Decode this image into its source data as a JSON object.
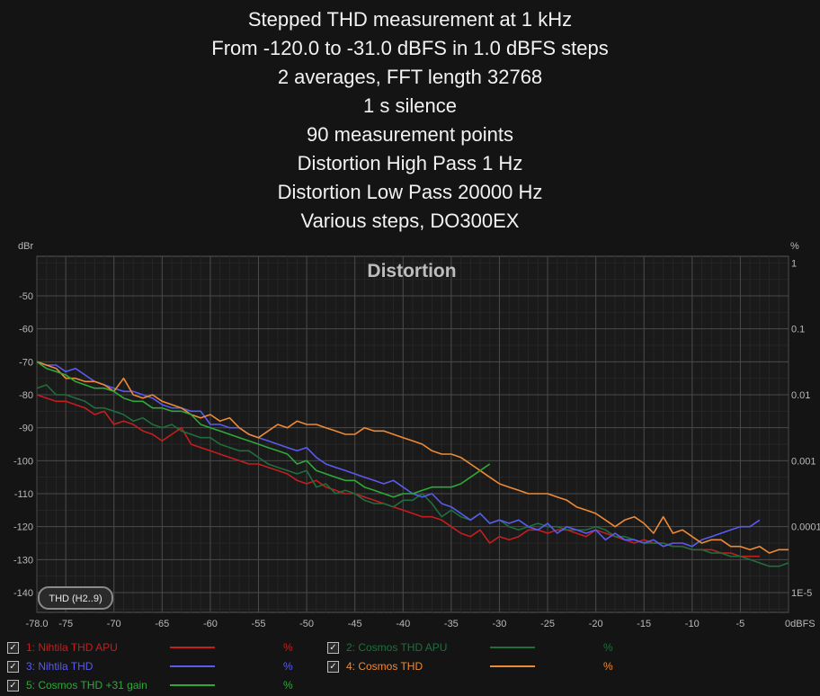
{
  "title_lines": [
    "Stepped THD measurement at 1 kHz",
    "From -120.0 to -31.0 dBFS in 1.0 dBFS steps",
    "2 averages, FFT length 32768",
    "1 s silence",
    "90 measurement points",
    "Distortion High Pass 1 Hz",
    "Distortion Low Pass 20000 Hz",
    "Various steps, DO300EX"
  ],
  "chart_data": {
    "type": "line",
    "title": "Distortion",
    "y_left_unit": "dBr",
    "y_right_unit": "%",
    "xlim": [
      -78.0,
      0
    ],
    "ylim": [
      -146,
      -38
    ],
    "x_ticks": [
      -78.0,
      -75,
      -70,
      -65,
      -60,
      -55,
      -50,
      -45,
      -40,
      -35,
      -30,
      -25,
      -20,
      -15,
      -10,
      -5,
      0
    ],
    "x_tick_labels": [
      "-78.0",
      "-75",
      "-70",
      "-65",
      "-60",
      "-55",
      "-50",
      "-45",
      "-40",
      "-35",
      "-30",
      "-25",
      "-20",
      "-15",
      "-10",
      "-5",
      "0dBFS"
    ],
    "y_ticks": [
      -50,
      -60,
      -70,
      -80,
      -90,
      -100,
      -110,
      -120,
      -130,
      -140
    ],
    "y_tick_labels": [
      "-50",
      "-60",
      "-70",
      "-80",
      "-90",
      "-100",
      "-110",
      "-120",
      "-130",
      "-140"
    ],
    "y_right_ticks": [
      -40,
      -60,
      -80,
      -100,
      -120,
      -140
    ],
    "y_right_labels": [
      "1",
      "0.1",
      "0.01",
      "0.001",
      "0.0001",
      "1E-5"
    ],
    "grid": true,
    "series": [
      {
        "name": "1: Nihtila THD  APU",
        "color": "#c41e1e",
        "x": [
          -78,
          -77,
          -76,
          -75,
          -74,
          -73,
          -72,
          -71,
          -70,
          -69,
          -68,
          -67,
          -66,
          -65,
          -64,
          -63,
          -62,
          -61,
          -60,
          -59,
          -58,
          -57,
          -56,
          -55,
          -54,
          -53,
          -52,
          -51,
          -50,
          -49,
          -48,
          -47,
          -46,
          -45,
          -44,
          -43,
          -42,
          -41,
          -40,
          -39,
          -38,
          -37,
          -36,
          -35,
          -34,
          -33,
          -32,
          -31,
          -30,
          -29,
          -28,
          -27,
          -26,
          -25,
          -24,
          -23,
          -22,
          -21,
          -20,
          -19,
          -18,
          -17,
          -16,
          -15,
          -14,
          -13,
          -12,
          -11,
          -10,
          -9,
          -8,
          -7,
          -6,
          -5,
          -4,
          -3
        ],
        "y": [
          -80,
          -81,
          -82,
          -82,
          -83,
          -84,
          -86,
          -85,
          -89,
          -88,
          -89,
          -91,
          -92,
          -94,
          -92,
          -90,
          -95,
          -96,
          -97,
          -98,
          -99,
          -100,
          -101,
          -101,
          -102,
          -103,
          -104,
          -106,
          -107,
          -106,
          -108,
          -109,
          -110,
          -110,
          -111,
          -112,
          -113,
          -114,
          -115,
          -116,
          -117,
          -117,
          -118,
          -120,
          -122,
          -123,
          -121,
          -125,
          -123,
          -124,
          -123,
          -121,
          -121,
          -122,
          -121,
          -121,
          -122,
          -123,
          -121,
          -122,
          -123,
          -124,
          -125,
          -124,
          -125,
          -125,
          -126,
          -126,
          -127,
          -127,
          -127,
          -128,
          -128,
          -129,
          -129,
          -129
        ]
      },
      {
        "name": "2: Cosmos THD APU",
        "color": "#1f6e3c",
        "x": [
          -78,
          -77,
          -76,
          -75,
          -74,
          -73,
          -72,
          -71,
          -70,
          -69,
          -68,
          -67,
          -66,
          -65,
          -64,
          -63,
          -62,
          -61,
          -60,
          -59,
          -58,
          -57,
          -56,
          -55,
          -54,
          -53,
          -52,
          -51,
          -50,
          -49,
          -48,
          -47,
          -46,
          -45,
          -44,
          -43,
          -42,
          -41,
          -40,
          -39,
          -38,
          -37,
          -36,
          -35,
          -34,
          -33,
          -32,
          -31,
          -30,
          -29,
          -28,
          -27,
          -26,
          -25,
          -24,
          -23,
          -22,
          -21,
          -20,
          -19,
          -18,
          -17,
          -16,
          -15,
          -14,
          -13,
          -12,
          -11,
          -10,
          -9,
          -8,
          -7,
          -6,
          -5,
          -4,
          -3,
          -2,
          -1,
          0
        ],
        "y": [
          -78,
          -77,
          -80,
          -80,
          -81,
          -82,
          -84,
          -84,
          -85,
          -86,
          -88,
          -87,
          -89,
          -90,
          -89,
          -91,
          -92,
          -93,
          -93,
          -95,
          -96,
          -97,
          -97,
          -99,
          -101,
          -102,
          -103,
          -104,
          -103,
          -108,
          -107,
          -110,
          -109,
          -110,
          -112,
          -113,
          -113,
          -114,
          -112,
          -112,
          -110,
          -113,
          -117,
          -115,
          -117,
          -118,
          -116,
          -119,
          -118,
          -120,
          -121,
          -120,
          -119,
          -120,
          -120,
          -121,
          -121,
          -121,
          -120,
          -121,
          -123,
          -123,
          -124,
          -125,
          -125,
          -125,
          -126,
          -126,
          -127,
          -127,
          -128,
          -128,
          -129,
          -129,
          -130,
          -131,
          -132,
          -132,
          -131
        ]
      },
      {
        "name": "3: Nihtila THD",
        "color": "#5a5af0",
        "x": [
          -78,
          -77,
          -76,
          -75,
          -74,
          -73,
          -72,
          -71,
          -70,
          -69,
          -68,
          -67,
          -66,
          -65,
          -64,
          -63,
          -62,
          -61,
          -60,
          -59,
          -58,
          -57,
          -56,
          -55,
          -54,
          -53,
          -52,
          -51,
          -50,
          -49,
          -48,
          -47,
          -46,
          -45,
          -44,
          -43,
          -42,
          -41,
          -40,
          -39,
          -38,
          -37,
          -36,
          -35,
          -34,
          -33,
          -32,
          -31,
          -30,
          -29,
          -28,
          -27,
          -26,
          -25,
          -24,
          -23,
          -22,
          -21,
          -20,
          -19,
          -18,
          -17,
          -16,
          -15,
          -14,
          -13,
          -12,
          -11,
          -10,
          -9,
          -8,
          -7,
          -6,
          -5,
          -4,
          -3
        ],
        "y": [
          -70,
          -71,
          -71,
          -73,
          -72,
          -74,
          -76,
          -77,
          -78,
          -79,
          -79,
          -80,
          -81,
          -83,
          -84,
          -84,
          -85,
          -85,
          -89,
          -89,
          -90,
          -90,
          -92,
          -93,
          -94,
          -95,
          -96,
          -97,
          -96,
          -99,
          -101,
          -102,
          -103,
          -104,
          -105,
          -106,
          -107,
          -106,
          -108,
          -110,
          -111,
          -110,
          -113,
          -114,
          -116,
          -118,
          -116,
          -119,
          -118,
          -119,
          -118,
          -120,
          -121,
          -119,
          -122,
          -120,
          -121,
          -122,
          -121,
          -124,
          -122,
          -124,
          -124,
          -125,
          -124,
          -126,
          -125,
          -125,
          -126,
          -124,
          -123,
          -122,
          -121,
          -120,
          -120,
          -118
        ]
      },
      {
        "name": "4: Cosmos THD",
        "color": "#ee8a35",
        "x": [
          -78,
          -77,
          -76,
          -75,
          -74,
          -73,
          -72,
          -71,
          -70,
          -69,
          -68,
          -67,
          -66,
          -65,
          -64,
          -63,
          -62,
          -61,
          -60,
          -59,
          -58,
          -57,
          -56,
          -55,
          -54,
          -53,
          -52,
          -51,
          -50,
          -49,
          -48,
          -47,
          -46,
          -45,
          -44,
          -43,
          -42,
          -41,
          -40,
          -39,
          -38,
          -37,
          -36,
          -35,
          -34,
          -33,
          -32,
          -31,
          -30,
          -29,
          -28,
          -27,
          -26,
          -25,
          -24,
          -23,
          -22,
          -21,
          -20,
          -19,
          -18,
          -17,
          -16,
          -15,
          -14,
          -13,
          -12,
          -11,
          -10,
          -9,
          -8,
          -7,
          -6,
          -5,
          -4,
          -3,
          -2,
          -1,
          0
        ],
        "y": [
          -70,
          -71,
          -72,
          -75,
          -75,
          -76,
          -76,
          -77,
          -79,
          -75,
          -80,
          -81,
          -80,
          -82,
          -83,
          -84,
          -86,
          -87,
          -86,
          -88,
          -87,
          -90,
          -92,
          -93,
          -91,
          -89,
          -90,
          -88,
          -89,
          -89,
          -90,
          -91,
          -92,
          -92,
          -90,
          -91,
          -91,
          -92,
          -93,
          -94,
          -95,
          -97,
          -98,
          -98,
          -99,
          -101,
          -103,
          -105,
          -107,
          -108,
          -109,
          -110,
          -110,
          -110,
          -111,
          -112,
          -114,
          -115,
          -116,
          -118,
          -120,
          -118,
          -117,
          -119,
          -122,
          -117,
          -122,
          -121,
          -123,
          -125,
          -124,
          -124,
          -126,
          -126,
          -127,
          -126,
          -128,
          -127,
          -127
        ]
      },
      {
        "name": "5: Cosmos THD +31 gain",
        "color": "#2fa83a",
        "x": [
          -78,
          -77,
          -76,
          -75,
          -74,
          -73,
          -72,
          -71,
          -70,
          -69,
          -68,
          -67,
          -66,
          -65,
          -64,
          -63,
          -62,
          -61,
          -60,
          -59,
          -58,
          -57,
          -56,
          -55,
          -54,
          -53,
          -52,
          -51,
          -50,
          -49,
          -48,
          -47,
          -46,
          -45,
          -44,
          -43,
          -42,
          -41,
          -40,
          -39,
          -38,
          -37,
          -36,
          -35,
          -34,
          -33,
          -32,
          -31
        ],
        "y": [
          -70,
          -72,
          -73,
          -74,
          -76,
          -77,
          -78,
          -78,
          -79,
          -81,
          -82,
          -82,
          -84,
          -84,
          -85,
          -85,
          -86,
          -89,
          -90,
          -91,
          -92,
          -93,
          -94,
          -95,
          -96,
          -97,
          -98,
          -101,
          -100,
          -103,
          -104,
          -105,
          -106,
          -106,
          -108,
          -109,
          -110,
          -111,
          -110,
          -110,
          -109,
          -108,
          -108,
          -108,
          -107,
          -105,
          -103,
          -101
        ]
      }
    ],
    "annotation": "THD (H2..9)"
  },
  "legend": [
    {
      "name": "1: Nihtila THD  APU",
      "unit": "%",
      "color": "#c41e1e",
      "checked": true
    },
    {
      "name": "2: Cosmos THD APU",
      "unit": "%",
      "color": "#1f6e3c",
      "checked": true
    },
    {
      "name": "3: Nihtila THD",
      "unit": "%",
      "color": "#5a5af0",
      "checked": true
    },
    {
      "name": "4: Cosmos THD",
      "unit": "%",
      "color": "#ee8a35",
      "checked": true
    },
    {
      "name": "5: Cosmos THD +31 gain",
      "unit": "%",
      "color": "#2fa83a",
      "checked": true
    }
  ]
}
